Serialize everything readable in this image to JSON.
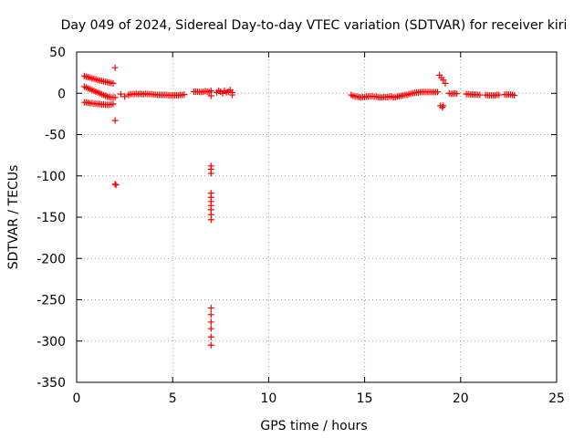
{
  "chart_data": {
    "type": "scatter",
    "title": "Day 049 of 2024, Sidereal Day-to-day VTEC variation (SDTVAR) for receiver kiri",
    "xlabel": "GPS time / hours",
    "ylabel": "SDTVAR / TECUs",
    "xlim": [
      0,
      25
    ],
    "ylim": [
      -350,
      50
    ],
    "xticks": [
      0,
      5,
      10,
      15,
      20,
      25
    ],
    "yticks": [
      50,
      0,
      -50,
      -100,
      -150,
      -200,
      -250,
      -300,
      -350
    ],
    "grid": true,
    "marker": "+",
    "color": "#ff0000",
    "series": [
      {
        "name": "SDTVAR",
        "points": [
          [
            0.4,
            21
          ],
          [
            0.5,
            20
          ],
          [
            0.6,
            19.5
          ],
          [
            0.7,
            19
          ],
          [
            0.8,
            18
          ],
          [
            0.9,
            17.5
          ],
          [
            1.0,
            17
          ],
          [
            1.1,
            16
          ],
          [
            1.2,
            15.5
          ],
          [
            1.3,
            15
          ],
          [
            1.4,
            14.5
          ],
          [
            1.5,
            14
          ],
          [
            1.6,
            13.5
          ],
          [
            1.7,
            13
          ],
          [
            1.8,
            12.5
          ],
          [
            1.9,
            12
          ],
          [
            0.4,
            8
          ],
          [
            0.5,
            7
          ],
          [
            0.6,
            6
          ],
          [
            0.7,
            5
          ],
          [
            0.8,
            4
          ],
          [
            0.9,
            3
          ],
          [
            1.0,
            2
          ],
          [
            1.1,
            1
          ],
          [
            1.2,
            0
          ],
          [
            1.3,
            -1
          ],
          [
            1.4,
            -2
          ],
          [
            1.5,
            -3
          ],
          [
            1.6,
            -4
          ],
          [
            1.7,
            -4.5
          ],
          [
            1.8,
            -5
          ],
          [
            1.9,
            -5
          ],
          [
            2.0,
            -5
          ],
          [
            0.4,
            -11
          ],
          [
            0.5,
            -11
          ],
          [
            0.6,
            -11.5
          ],
          [
            0.7,
            -12
          ],
          [
            0.8,
            -12
          ],
          [
            0.9,
            -12.5
          ],
          [
            1.0,
            -12.5
          ],
          [
            1.1,
            -13
          ],
          [
            1.2,
            -13
          ],
          [
            1.3,
            -13.5
          ],
          [
            1.4,
            -13.5
          ],
          [
            1.5,
            -14
          ],
          [
            1.6,
            -14
          ],
          [
            1.7,
            -14
          ],
          [
            1.8,
            -13.5
          ],
          [
            1.9,
            -13
          ],
          [
            2.0,
            31
          ],
          [
            2.0,
            -33
          ],
          [
            2.0,
            -110
          ],
          [
            2.05,
            -111
          ],
          [
            2.3,
            -1
          ],
          [
            2.5,
            -4
          ],
          [
            2.7,
            -2
          ],
          [
            2.8,
            -1
          ],
          [
            2.9,
            -1
          ],
          [
            3.0,
            -1
          ],
          [
            3.1,
            -0.5
          ],
          [
            3.2,
            -1
          ],
          [
            3.3,
            -0.5
          ],
          [
            3.4,
            -1
          ],
          [
            3.5,
            -1
          ],
          [
            3.6,
            -0.5
          ],
          [
            3.7,
            -1
          ],
          [
            3.8,
            -1
          ],
          [
            3.9,
            -1
          ],
          [
            4.0,
            -1.5
          ],
          [
            4.1,
            -1.5
          ],
          [
            4.2,
            -2
          ],
          [
            4.3,
            -2
          ],
          [
            4.4,
            -2
          ],
          [
            4.5,
            -2
          ],
          [
            4.6,
            -2
          ],
          [
            4.7,
            -2
          ],
          [
            4.8,
            -2.5
          ],
          [
            4.9,
            -2.5
          ],
          [
            5.0,
            -2.5
          ],
          [
            5.1,
            -2.5
          ],
          [
            5.2,
            -2.5
          ],
          [
            5.3,
            -2.5
          ],
          [
            5.4,
            -2
          ],
          [
            5.5,
            -2
          ],
          [
            5.6,
            -1.5
          ],
          [
            6.1,
            2
          ],
          [
            6.2,
            2
          ],
          [
            6.3,
            2
          ],
          [
            6.4,
            1.5
          ],
          [
            6.5,
            1.5
          ],
          [
            6.6,
            2
          ],
          [
            6.7,
            2.5
          ],
          [
            6.8,
            2
          ],
          [
            6.9,
            1.5
          ],
          [
            7.0,
            3
          ],
          [
            7.0,
            -3
          ],
          [
            7.0,
            -88
          ],
          [
            7.0,
            -92
          ],
          [
            7.0,
            -97
          ],
          [
            7.0,
            -121
          ],
          [
            7.0,
            -126
          ],
          [
            7.0,
            -131
          ],
          [
            7.0,
            -136
          ],
          [
            7.0,
            -141
          ],
          [
            7.0,
            -147
          ],
          [
            7.0,
            -153
          ],
          [
            7.0,
            -260
          ],
          [
            7.0,
            -268
          ],
          [
            7.0,
            -277
          ],
          [
            7.0,
            -285
          ],
          [
            7.0,
            -295
          ],
          [
            7.0,
            -305
          ],
          [
            7.3,
            1
          ],
          [
            7.4,
            3
          ],
          [
            7.5,
            2
          ],
          [
            7.6,
            0
          ],
          [
            7.7,
            3
          ],
          [
            7.8,
            1
          ],
          [
            7.9,
            2
          ],
          [
            8.0,
            4
          ],
          [
            8.1,
            1
          ],
          [
            8.1,
            -2
          ],
          [
            14.3,
            -2
          ],
          [
            14.4,
            -3
          ],
          [
            14.5,
            -4
          ],
          [
            14.6,
            -4
          ],
          [
            14.7,
            -4.5
          ],
          [
            14.8,
            -5
          ],
          [
            14.9,
            -4.5
          ],
          [
            15.0,
            -4.5
          ],
          [
            15.1,
            -4
          ],
          [
            15.2,
            -4
          ],
          [
            15.3,
            -3.5
          ],
          [
            15.4,
            -3.5
          ],
          [
            15.5,
            -4
          ],
          [
            15.6,
            -4
          ],
          [
            15.7,
            -4.5
          ],
          [
            15.8,
            -5
          ],
          [
            15.9,
            -5
          ],
          [
            16.0,
            -4.5
          ],
          [
            16.1,
            -4.5
          ],
          [
            16.2,
            -4.5
          ],
          [
            16.3,
            -4
          ],
          [
            16.4,
            -4
          ],
          [
            16.5,
            -5
          ],
          [
            16.6,
            -5
          ],
          [
            16.7,
            -4
          ],
          [
            16.8,
            -3.5
          ],
          [
            16.9,
            -3
          ],
          [
            17.0,
            -2.5
          ],
          [
            17.1,
            -2
          ],
          [
            17.2,
            -2
          ],
          [
            17.3,
            -1
          ],
          [
            17.4,
            -0.5
          ],
          [
            17.5,
            0
          ],
          [
            17.6,
            0.5
          ],
          [
            17.7,
            1
          ],
          [
            17.8,
            1
          ],
          [
            17.9,
            1.5
          ],
          [
            18.0,
            1.5
          ],
          [
            18.1,
            1.5
          ],
          [
            18.2,
            1.5
          ],
          [
            18.3,
            1.5
          ],
          [
            18.4,
            1.5
          ],
          [
            18.5,
            1.5
          ],
          [
            18.6,
            1.5
          ],
          [
            18.7,
            1.5
          ],
          [
            18.8,
            1.5
          ],
          [
            18.9,
            22
          ],
          [
            19.0,
            19
          ],
          [
            19.1,
            16
          ],
          [
            19.2,
            12
          ],
          [
            18.95,
            -15
          ],
          [
            19.05,
            -17
          ],
          [
            19.1,
            -15
          ],
          [
            19.4,
            0
          ],
          [
            19.5,
            -0.5
          ],
          [
            19.6,
            -0.5
          ],
          [
            19.7,
            0
          ],
          [
            19.8,
            -0.5
          ],
          [
            20.3,
            -1
          ],
          [
            20.4,
            -1
          ],
          [
            20.5,
            -1.5
          ],
          [
            20.6,
            -1.5
          ],
          [
            20.7,
            -1.5
          ],
          [
            20.8,
            -1.5
          ],
          [
            20.9,
            -2
          ],
          [
            21.0,
            -2
          ],
          [
            21.3,
            -2
          ],
          [
            21.4,
            -2.5
          ],
          [
            21.5,
            -2.5
          ],
          [
            21.6,
            -2.5
          ],
          [
            21.7,
            -2.5
          ],
          [
            21.8,
            -2.5
          ],
          [
            21.9,
            -2
          ],
          [
            22.0,
            -2
          ],
          [
            22.3,
            -1.5
          ],
          [
            22.4,
            -1.5
          ],
          [
            22.5,
            -1.5
          ],
          [
            22.6,
            -1.5
          ],
          [
            22.7,
            -2
          ],
          [
            22.8,
            -2.5
          ]
        ]
      }
    ]
  }
}
